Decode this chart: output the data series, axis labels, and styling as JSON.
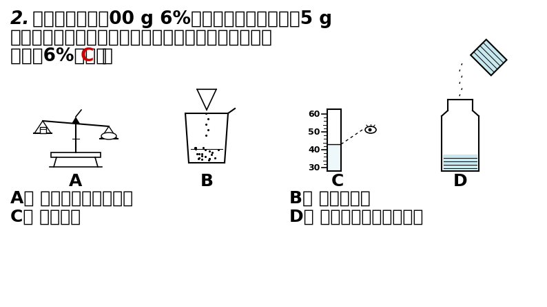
{
  "background_color": "#ffffff",
  "line1": "2. 化学小组要配刱00 g 6%的氯化钓溶液（称量旰5 g",
  "line2": "以下用游码）。下列操作会导致所配溶液的溶质质量分",
  "line3_pre": "数大于6%的是（  ",
  "answer": "C",
  "line3_post": "  ）",
  "answer_color": "#cc0000",
  "label_A": "A",
  "label_B": "B",
  "label_C": "C",
  "label_D": "D",
  "desc_A": "A． 氯化钓放在右盘称量",
  "desc_B": "B． 氯化钓撒出",
  "desc_C": "C． 俦视读数",
  "desc_D": "D． 配好的溶液装瓶时洒出",
  "font_size_title": 19,
  "font_size_label": 18,
  "font_size_desc": 18,
  "text_color": "#000000"
}
